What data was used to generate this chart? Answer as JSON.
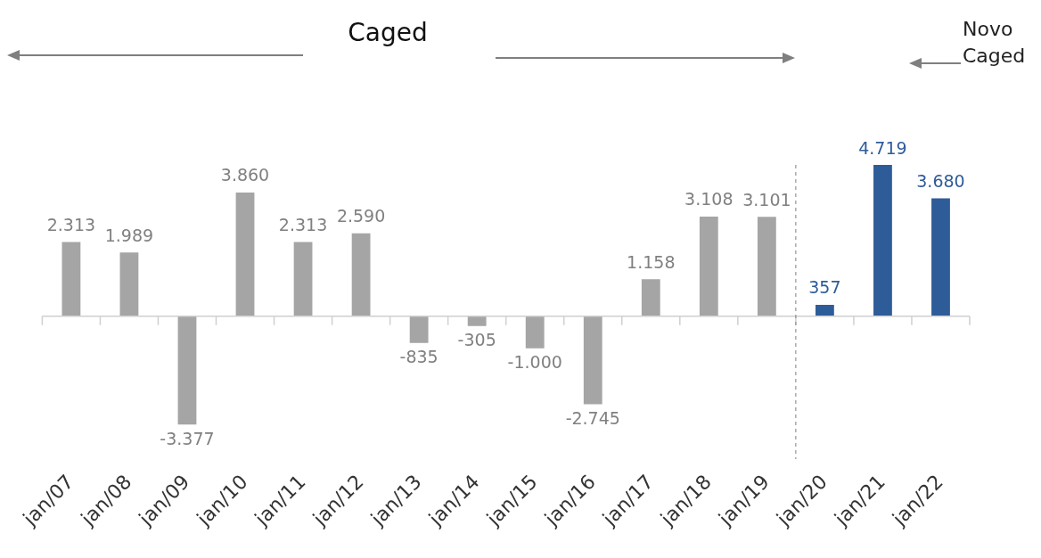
{
  "chart_data": {
    "type": "bar",
    "categories": [
      "jan/07",
      "jan/08",
      "jan/09",
      "jan/10",
      "jan/11",
      "jan/12",
      "jan/13",
      "jan/14",
      "jan/15",
      "jan/16",
      "jan/17",
      "jan/18",
      "jan/19",
      "jan/20",
      "jan/21",
      "jan/22"
    ],
    "values": [
      2313,
      1989,
      -3377,
      3860,
      2313,
      2590,
      -835,
      -305,
      -1000,
      -2745,
      1158,
      3108,
      3101,
      357,
      4719,
      3680
    ],
    "colors": [
      "#a5a5a5",
      "#a5a5a5",
      "#a5a5a5",
      "#a5a5a5",
      "#a5a5a5",
      "#a5a5a5",
      "#a5a5a5",
      "#a5a5a5",
      "#a5a5a5",
      "#a5a5a5",
      "#a5a5a5",
      "#a5a5a5",
      "#a5a5a5",
      "#2e5c99",
      "#2e5c99",
      "#2e5c99"
    ],
    "value_labels": [
      "2.313",
      "1.989",
      "-3.377",
      "3.860",
      "2.313",
      "2.590",
      "-835",
      "-305",
      "-1.000",
      "-2.745",
      "1.158",
      "3.108",
      "3.101",
      "357",
      "4.719",
      "3.680"
    ],
    "annotations": [
      "Caged",
      "Novo Caged"
    ],
    "grid": false,
    "legend": false
  }
}
